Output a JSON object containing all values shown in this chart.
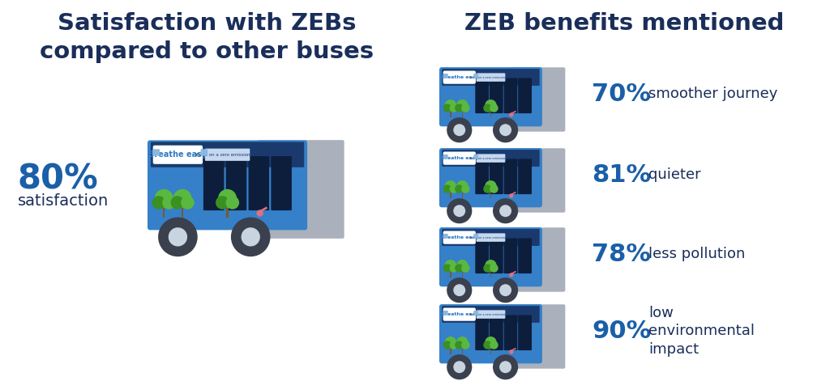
{
  "title_left": "Satisfaction with ZEBs\ncompared to other buses",
  "title_right": "ZEB benefits mentioned",
  "big_pct": "80%",
  "big_label": "satisfaction",
  "benefits": [
    {
      "pct": "70%",
      "label": "smoother journey"
    },
    {
      "pct": "81%",
      "label": "quieter"
    },
    {
      "pct": "78%",
      "label": "less pollution"
    },
    {
      "pct": "90%",
      "label": "low\nenvironmental\nimpact"
    }
  ],
  "title_color": "#1a2e5a",
  "pct_color": "#1a5fa8",
  "label_color": "#1a2e5a",
  "bg_color": "#ffffff",
  "bus_body_color": "#3580c8",
  "bus_dark_blue": "#1a3a6e",
  "bus_mid_blue": "#2a5ca8",
  "bus_window_dark": "#0d1e3d",
  "bus_gray": "#aab0bc",
  "wheel_outer": "#3a404e",
  "wheel_inner": "#c8d4e0",
  "tree_green": "#5ab840",
  "tree_dark": "#3a9020",
  "tree_trunk": "#7a5830",
  "badge_text": "#2e7bc4",
  "strip_blue": "#1a4080"
}
